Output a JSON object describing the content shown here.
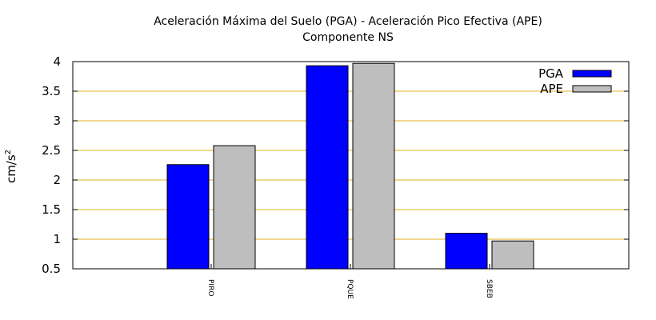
{
  "chart_data": {
    "type": "bar",
    "title": "Aceleración Máxima del Suelo (PGA) -  Aceleración Pico Efectiva (APE)",
    "subtitle": "Componente NS",
    "xlabel": "",
    "ylabel": "cm/s",
    "ylabel_sup": "2",
    "categories": [
      "PIRO",
      "PQUE",
      "SBEB"
    ],
    "series": [
      {
        "name": "PGA",
        "values": [
          2.26,
          3.93,
          1.1
        ],
        "color": "#0000ff"
      },
      {
        "name": "APE",
        "values": [
          2.58,
          3.97,
          0.97
        ],
        "color": "#bebebe"
      }
    ],
    "ylim": [
      0.5,
      4
    ],
    "yticks": [
      "0.5",
      "1",
      "1.5",
      "2",
      "2.5",
      "3",
      "3.5",
      "4"
    ],
    "grid": "horizontal",
    "grid_color": "#e0b020",
    "legend_position": "top-right"
  }
}
